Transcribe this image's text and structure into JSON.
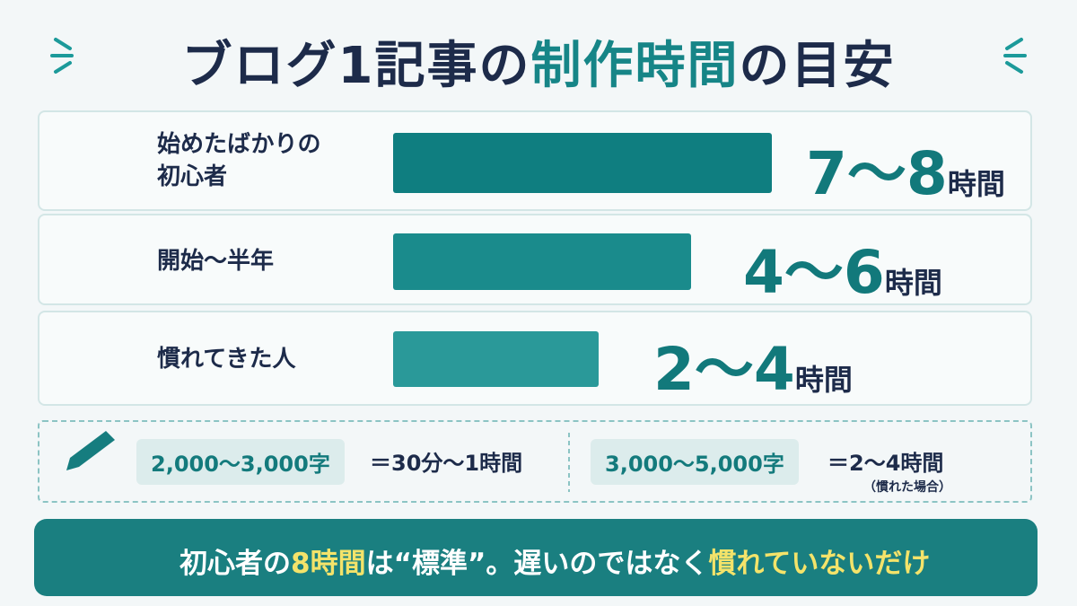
{
  "title": {
    "before": "ブログ1記事の",
    "highlight": "制作時間",
    "after": "の目安"
  },
  "rows": [
    {
      "label": [
        "始めたばかりの",
        "初心者"
      ],
      "time": "7〜8",
      "unit": "時間"
    },
    {
      "label": [
        "開始〜半年"
      ],
      "time": "4〜6",
      "unit": "時間"
    },
    {
      "label": [
        "慣れてきた人"
      ],
      "time": "2〜4",
      "unit": "時間"
    }
  ],
  "notes": [
    {
      "chars": "2,000〜3,000字",
      "result": "＝30分〜1時間"
    },
    {
      "chars": "3,000〜5,000字",
      "result": "＝2〜4時間",
      "sub": "（慣れた場合）"
    }
  ],
  "banner": [
    "初心者の",
    "8時間",
    "は",
    "“標準”",
    "。遅いのではなく",
    "慣れていないだけ"
  ]
}
